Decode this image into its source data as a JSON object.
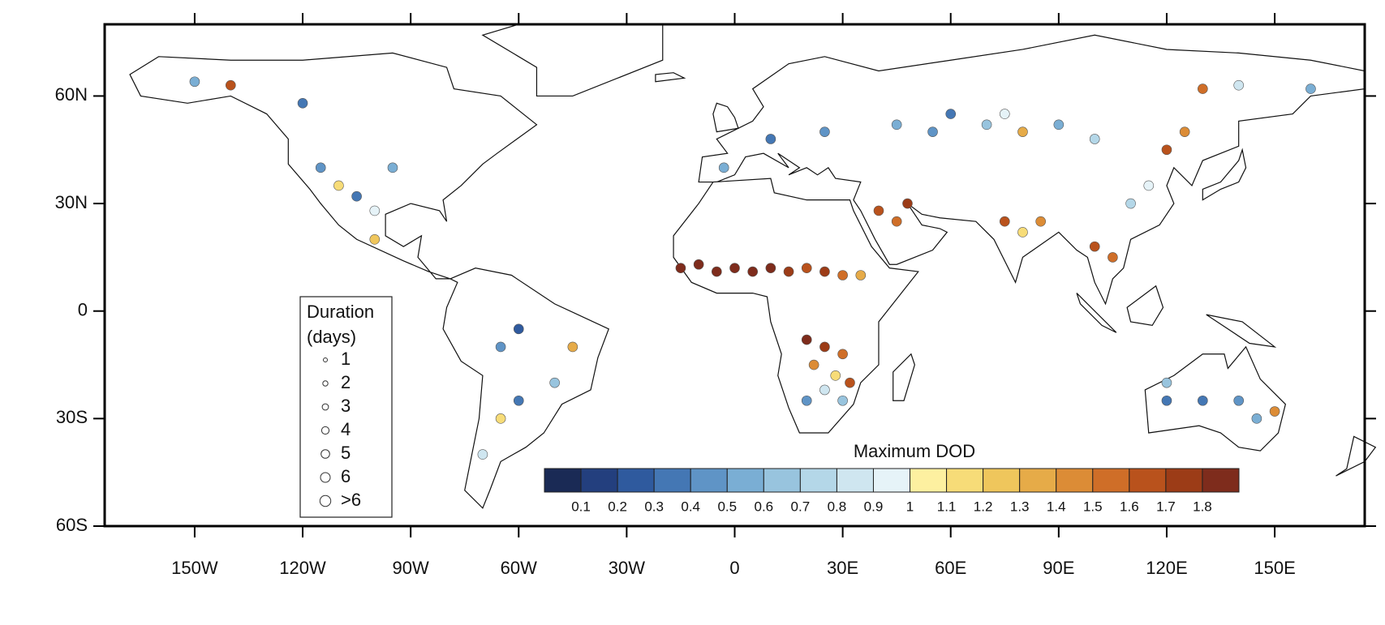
{
  "chart_data": {
    "type": "map",
    "xlim": [
      -175,
      175
    ],
    "ylim": [
      -60,
      80
    ],
    "xticks": [
      {
        "value": -150,
        "label": "150W"
      },
      {
        "value": -120,
        "label": "120W"
      },
      {
        "value": -90,
        "label": "90W"
      },
      {
        "value": -60,
        "label": "60W"
      },
      {
        "value": -30,
        "label": "30W"
      },
      0,
      {
        "value": 30,
        "label": "30E"
      },
      {
        "value": 60,
        "label": "60E"
      },
      {
        "value": 90,
        "label": "90E"
      },
      {
        "value": 120,
        "label": "120E"
      },
      {
        "value": 150,
        "label": "150E"
      }
    ],
    "yticks": [
      {
        "value": 60,
        "label": "60N"
      },
      {
        "value": 30,
        "label": "30N"
      },
      0,
      {
        "value": -30,
        "label": "30S"
      },
      {
        "value": -60,
        "label": "60S"
      }
    ],
    "colorbar": {
      "title": "Maximum DOD",
      "levels": [
        0.1,
        0.2,
        0.3,
        0.4,
        0.5,
        0.6,
        0.7,
        0.8,
        0.9,
        1,
        1.1,
        1.2,
        1.3,
        1.4,
        1.5,
        1.6,
        1.7,
        1.8
      ],
      "colors": [
        "#1a2a55",
        "#233f7e",
        "#2f5a9e",
        "#4477b4",
        "#5f94c6",
        "#7aaed4",
        "#98c4de",
        "#b4d7e8",
        "#cfe6f0",
        "#e6f3f8",
        "#fdf0a0",
        "#f7dc78",
        "#efc65c",
        "#e6ab48",
        "#dc8c36",
        "#cf6e28",
        "#b9521c",
        "#9c3c17",
        "#7e2c1c"
      ]
    },
    "size_legend": {
      "title": [
        "Duration",
        "(days)"
      ],
      "labels": [
        1,
        2,
        3,
        4,
        5,
        6,
        ">6"
      ]
    },
    "points": [
      {
        "lon": -15,
        "lat": 12,
        "dod": 1.8
      },
      {
        "lon": -10,
        "lat": 13,
        "dod": 1.8
      },
      {
        "lon": -5,
        "lat": 11,
        "dod": 1.8
      },
      {
        "lon": 0,
        "lat": 12,
        "dod": 1.8
      },
      {
        "lon": 5,
        "lat": 11,
        "dod": 1.8
      },
      {
        "lon": 10,
        "lat": 12,
        "dod": 1.8
      },
      {
        "lon": 15,
        "lat": 11,
        "dod": 1.7
      },
      {
        "lon": 20,
        "lat": 12,
        "dod": 1.6
      },
      {
        "lon": 25,
        "lat": 11,
        "dod": 1.7
      },
      {
        "lon": 30,
        "lat": 10,
        "dod": 1.5
      },
      {
        "lon": 35,
        "lat": 10,
        "dod": 1.3
      },
      {
        "lon": 20,
        "lat": -8,
        "dod": 1.8
      },
      {
        "lon": 25,
        "lat": -10,
        "dod": 1.7
      },
      {
        "lon": 30,
        "lat": -12,
        "dod": 1.5
      },
      {
        "lon": 22,
        "lat": -15,
        "dod": 1.4
      },
      {
        "lon": 28,
        "lat": -18,
        "dod": 1.1
      },
      {
        "lon": 25,
        "lat": -22,
        "dod": 0.8
      },
      {
        "lon": 30,
        "lat": -25,
        "dod": 0.6
      },
      {
        "lon": 20,
        "lat": -25,
        "dod": 0.4
      },
      {
        "lon": 32,
        "lat": -20,
        "dod": 1.6
      },
      {
        "lon": 40,
        "lat": 28,
        "dod": 1.6
      },
      {
        "lon": 45,
        "lat": 25,
        "dod": 1.5
      },
      {
        "lon": 48,
        "lat": 30,
        "dod": 1.7
      },
      {
        "lon": 75,
        "lat": 25,
        "dod": 1.6
      },
      {
        "lon": 80,
        "lat": 22,
        "dod": 1.1
      },
      {
        "lon": 85,
        "lat": 25,
        "dod": 1.4
      },
      {
        "lon": 100,
        "lat": 18,
        "dod": 1.6
      },
      {
        "lon": 105,
        "lat": 15,
        "dod": 1.5
      },
      {
        "lon": 110,
        "lat": 30,
        "dod": 0.7
      },
      {
        "lon": 115,
        "lat": 35,
        "dod": 0.9
      },
      {
        "lon": 45,
        "lat": 52,
        "dod": 0.5
      },
      {
        "lon": 55,
        "lat": 50,
        "dod": 0.4
      },
      {
        "lon": 60,
        "lat": 55,
        "dod": 0.3
      },
      {
        "lon": 70,
        "lat": 52,
        "dod": 0.6
      },
      {
        "lon": 75,
        "lat": 55,
        "dod": 0.9
      },
      {
        "lon": 80,
        "lat": 50,
        "dod": 1.3
      },
      {
        "lon": 90,
        "lat": 52,
        "dod": 0.5
      },
      {
        "lon": 100,
        "lat": 48,
        "dod": 0.7
      },
      {
        "lon": 120,
        "lat": 45,
        "dod": 1.6
      },
      {
        "lon": 125,
        "lat": 50,
        "dod": 1.4
      },
      {
        "lon": 130,
        "lat": 62,
        "dod": 1.5
      },
      {
        "lon": 140,
        "lat": 63,
        "dod": 0.8
      },
      {
        "lon": 160,
        "lat": 62,
        "dod": 0.5
      },
      {
        "lon": -115,
        "lat": 40,
        "dod": 0.4
      },
      {
        "lon": -110,
        "lat": 35,
        "dod": 1.1
      },
      {
        "lon": -105,
        "lat": 32,
        "dod": 0.3
      },
      {
        "lon": -100,
        "lat": 28,
        "dod": 0.9
      },
      {
        "lon": -100,
        "lat": 20,
        "dod": 1.2
      },
      {
        "lon": -120,
        "lat": 58,
        "dod": 0.3
      },
      {
        "lon": -140,
        "lat": 63,
        "dod": 1.6
      },
      {
        "lon": -150,
        "lat": 64,
        "dod": 0.5
      },
      {
        "lon": -95,
        "lat": 40,
        "dod": 0.5
      },
      {
        "lon": -65,
        "lat": -10,
        "dod": 0.4
      },
      {
        "lon": -45,
        "lat": -10,
        "dod": 1.3
      },
      {
        "lon": -50,
        "lat": -20,
        "dod": 0.6
      },
      {
        "lon": -60,
        "lat": -25,
        "dod": 0.3
      },
      {
        "lon": -65,
        "lat": -30,
        "dod": 1.1
      },
      {
        "lon": -70,
        "lat": -40,
        "dod": 0.8
      },
      {
        "lon": -60,
        "lat": -5,
        "dod": 0.2
      },
      {
        "lon": 120,
        "lat": -25,
        "dod": 0.3
      },
      {
        "lon": 130,
        "lat": -25,
        "dod": 0.3
      },
      {
        "lon": 140,
        "lat": -25,
        "dod": 0.4
      },
      {
        "lon": 145,
        "lat": -30,
        "dod": 0.5
      },
      {
        "lon": 150,
        "lat": -28,
        "dod": 1.4
      },
      {
        "lon": 120,
        "lat": -20,
        "dod": 0.6
      },
      {
        "lon": -3,
        "lat": 40,
        "dod": 0.5
      },
      {
        "lon": 10,
        "lat": 48,
        "dod": 0.3
      },
      {
        "lon": 25,
        "lat": 50,
        "dod": 0.4
      }
    ]
  }
}
